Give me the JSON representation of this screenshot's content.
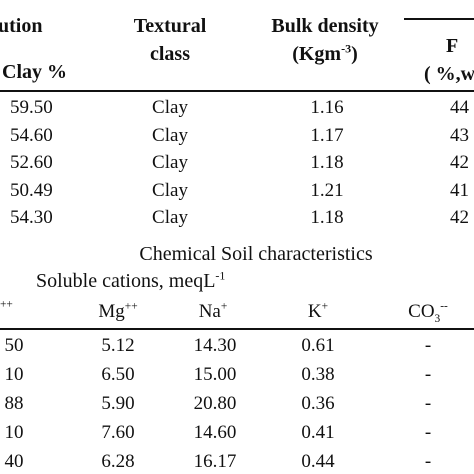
{
  "physical_header": {
    "col1_top": "ution",
    "col1_sub": "Clay %",
    "texture_line1": "Textural",
    "texture_line2": "class",
    "bulk_line1": "Bulk density",
    "bulk_line2_pre": "(Kgm",
    "bulk_line2_sup": "-3",
    "bulk_line2_post": ")",
    "col4_top": "F",
    "col4_sub": "( %,w"
  },
  "physical_rows": [
    {
      "clay": "59.50",
      "texture": "Clay",
      "bulk": "1.16",
      "col4": "44"
    },
    {
      "clay": "54.60",
      "texture": "Clay",
      "bulk": "1.17",
      "col4": "43"
    },
    {
      "clay": "52.60",
      "texture": "Clay",
      "bulk": "1.18",
      "col4": "42"
    },
    {
      "clay": "50.49",
      "texture": "Clay",
      "bulk": "1.21",
      "col4": "41"
    },
    {
      "clay": "54.30",
      "texture": "Clay",
      "bulk": "1.18",
      "col4": "42"
    }
  ],
  "chemical_title": "Chemical Soil characteristics",
  "soluble_label": "Soluble cations, meqL",
  "soluble_sup": "-1",
  "chemical_header": {
    "c0_sup": "++",
    "mg": "Mg",
    "mg_sup": "++",
    "na": "Na",
    "na_sup": "+",
    "k": "K",
    "k_sup": "+",
    "co3": "CO",
    "co3_sub": "3",
    "co3_sup": "--"
  },
  "chemical_rows": [
    {
      "c0": "50",
      "mg": "5.12",
      "na": "14.30",
      "k": "0.61",
      "co3": "-"
    },
    {
      "c0": "10",
      "mg": "6.50",
      "na": "15.00",
      "k": "0.38",
      "co3": "-"
    },
    {
      "c0": "88",
      "mg": "5.90",
      "na": "20.80",
      "k": "0.36",
      "co3": "-"
    },
    {
      "c0": "10",
      "mg": "7.60",
      "na": "14.60",
      "k": "0.41",
      "co3": "-"
    },
    {
      "c0": "40",
      "mg": "6.28",
      "na": "16.17",
      "k": "0.44",
      "co3": "-"
    }
  ]
}
